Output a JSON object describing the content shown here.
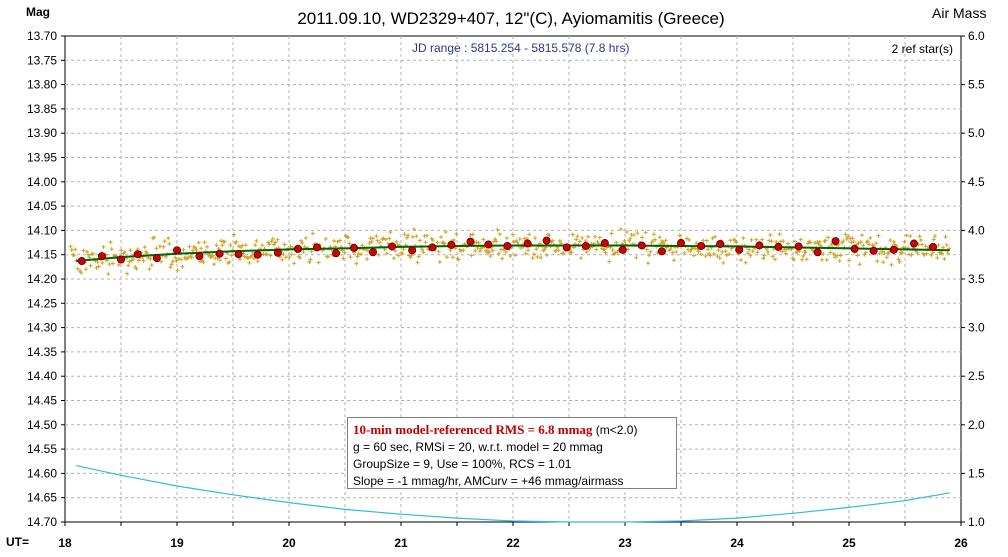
{
  "chart_data": {
    "type": "scatter",
    "title": "2011.09.10, WD2329+407, 12\"(C), Ayiomamitis (Greece)",
    "ylabel_left": "Mag",
    "ylabel_right": "Air Mass",
    "xlabel": "UT=",
    "x_ticks": [
      "18",
      "19",
      "20",
      "21",
      "22",
      "23",
      "24",
      "25",
      "26"
    ],
    "y_left_ticks": [
      "13.70",
      "13.75",
      "13.80",
      "13.85",
      "13.90",
      "13.95",
      "14.00",
      "14.05",
      "14.10",
      "14.15",
      "14.20",
      "14.25",
      "14.30",
      "14.35",
      "14.40",
      "14.45",
      "14.50",
      "14.55",
      "14.60",
      "14.65",
      "14.70"
    ],
    "y_right_ticks": [
      "6.0",
      "5.5",
      "5.0",
      "4.5",
      "4.0",
      "3.5",
      "3.0",
      "2.5",
      "2.0",
      "1.5",
      "1.0"
    ],
    "xlim": [
      18,
      26
    ],
    "ylim_left": [
      14.7,
      13.7
    ],
    "ylim_right": [
      1.0,
      6.0
    ],
    "grid": true,
    "jd_range": "JD range : 5815.254 - 5815.578 (7.8 hrs)",
    "ref_stars": "2 ref star(s)",
    "series": [
      {
        "name": "10-min averages",
        "color": "#cc0000",
        "x": [
          18.15,
          18.33,
          18.5,
          18.65,
          18.82,
          19.0,
          19.2,
          19.38,
          19.55,
          19.72,
          19.9,
          20.08,
          20.25,
          20.42,
          20.58,
          20.75,
          20.92,
          21.1,
          21.28,
          21.45,
          21.62,
          21.78,
          21.95,
          22.13,
          22.3,
          22.48,
          22.65,
          22.82,
          22.98,
          23.15,
          23.33,
          23.5,
          23.68,
          23.85,
          24.02,
          24.2,
          24.37,
          24.55,
          24.72,
          24.88,
          25.05,
          25.22,
          25.4,
          25.58,
          25.75
        ],
        "y": [
          14.163,
          14.153,
          14.16,
          14.149,
          14.157,
          14.141,
          14.153,
          14.148,
          14.149,
          14.15,
          14.146,
          14.138,
          14.135,
          14.147,
          14.136,
          14.145,
          14.133,
          14.141,
          14.135,
          14.13,
          14.123,
          14.129,
          14.132,
          14.127,
          14.121,
          14.135,
          14.132,
          14.126,
          14.14,
          14.131,
          14.143,
          14.126,
          14.132,
          14.128,
          14.14,
          14.131,
          14.134,
          14.133,
          14.145,
          14.122,
          14.138,
          14.142,
          14.14,
          14.127,
          14.134
        ]
      },
      {
        "name": "model",
        "color": "#006600",
        "x": [
          18.1,
          18.5,
          19.0,
          19.5,
          20.0,
          20.5,
          21.0,
          21.5,
          22.0,
          22.5,
          23.0,
          23.5,
          24.0,
          24.5,
          25.0,
          25.5,
          25.9
        ],
        "y": [
          14.163,
          14.155,
          14.148,
          14.143,
          14.139,
          14.137,
          14.134,
          14.132,
          14.131,
          14.131,
          14.131,
          14.132,
          14.133,
          14.135,
          14.137,
          14.139,
          14.141
        ]
      },
      {
        "name": "air mass",
        "axis": "right",
        "color": "#33bbdd",
        "x": [
          18.1,
          18.5,
          19.0,
          19.5,
          20.0,
          20.5,
          21.0,
          21.5,
          22.0,
          22.5,
          23.0,
          23.5,
          24.0,
          24.5,
          25.0,
          25.5,
          25.9
        ],
        "y": [
          1.58,
          1.48,
          1.37,
          1.28,
          1.2,
          1.13,
          1.08,
          1.04,
          1.01,
          0.99,
          0.99,
          1.01,
          1.04,
          1.09,
          1.15,
          1.22,
          1.3
        ]
      }
    ]
  },
  "info": {
    "rms": "10-min model-referenced RMS = 6.8 mmag",
    "rms_cond": "(m<2.0)",
    "line2": "g = 60 sec, RMSi = 20, w.r.t. model = 20 mmag",
    "line3": "GroupSize = 9, Use = 100%, RCS = 1.01",
    "line4": "Slope = -1 mmag/hr, AMCurv = +46 mmag/airmass"
  },
  "colors": {
    "raw_points": "#d4a020",
    "grid": "#b0b0b0",
    "frame": "#000000"
  }
}
